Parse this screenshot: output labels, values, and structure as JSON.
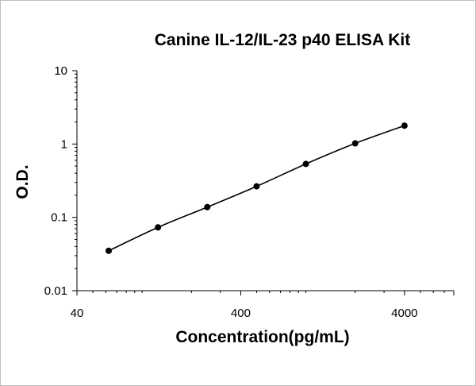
{
  "chart_data": {
    "type": "line",
    "title": "Canine IL-12/IL-23 p40 ELISA Kit",
    "xlabel": "Concentration(pg/mL)",
    "ylabel": "O.D.",
    "xscale": "log",
    "yscale": "log",
    "xlim": [
      40,
      8000
    ],
    "ylim": [
      0.01,
      10
    ],
    "xticks": [
      {
        "value": 40,
        "label": "40"
      },
      {
        "value": 400,
        "label": "400"
      },
      {
        "value": 4000,
        "label": "4000"
      }
    ],
    "yticks": [
      {
        "value": 0.01,
        "label": "0.01"
      },
      {
        "value": 0.1,
        "label": "0.1"
      },
      {
        "value": 1,
        "label": "1"
      },
      {
        "value": 10,
        "label": "10"
      }
    ],
    "grid": false,
    "legend": "none",
    "series": [
      {
        "color": "#000000",
        "x": [
          62.5,
          125,
          250,
          500,
          1000,
          2000,
          4000
        ],
        "y": [
          0.035,
          0.073,
          0.138,
          0.265,
          0.535,
          1.02,
          1.78
        ]
      }
    ]
  }
}
